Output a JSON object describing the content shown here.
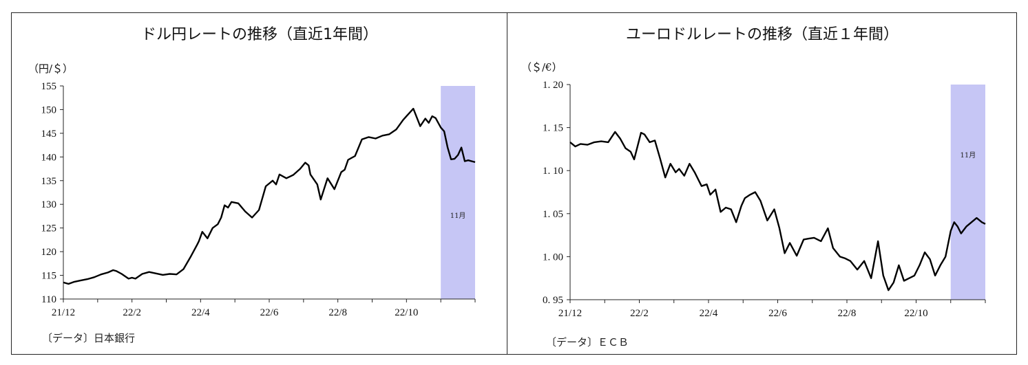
{
  "chart_data": [
    {
      "type": "line",
      "title": "ドル円レートの推移（直近1年間）",
      "unit_label": "（円/＄）",
      "source": "〔データ〕日本銀行",
      "x_tick_labels": [
        "21/12",
        "22/2",
        "22/4",
        "22/6",
        "22/8",
        "22/10"
      ],
      "y_ticks": [
        110,
        115,
        120,
        125,
        130,
        135,
        140,
        145,
        150,
        155
      ],
      "ylim": [
        110,
        155
      ],
      "x_range_months": [
        0,
        12
      ],
      "shaded_region": {
        "x_start": 11,
        "x_end": 12,
        "label": "11月",
        "color": "#c6c6f5"
      },
      "grid": false,
      "series": [
        {
          "color": "#000000",
          "x": [
            0,
            0.15,
            0.3,
            0.5,
            0.7,
            0.9,
            1.1,
            1.3,
            1.45,
            1.55,
            1.7,
            1.9,
            2.0,
            2.1,
            2.3,
            2.5,
            2.7,
            2.9,
            3.1,
            3.3,
            3.5,
            3.7,
            3.9,
            3.95,
            4.05,
            4.2,
            4.35,
            4.5,
            4.6,
            4.7,
            4.8,
            4.9,
            5.1,
            5.3,
            5.5,
            5.7,
            5.9,
            6.1,
            6.2,
            6.3,
            6.5,
            6.7,
            6.9,
            7.05,
            7.15,
            7.2,
            7.4,
            7.5,
            7.7,
            7.9,
            8.1,
            8.2,
            8.3,
            8.5,
            8.7,
            8.9,
            9.1,
            9.3,
            9.5,
            9.7,
            9.9,
            10.0,
            10.2,
            10.4,
            10.55,
            10.65,
            10.75,
            10.85,
            11.0,
            11.1,
            11.2,
            11.3,
            11.4,
            11.5,
            11.6,
            11.7,
            11.8,
            12.0
          ],
          "values": [
            113.5,
            113.2,
            113.6,
            113.9,
            114.2,
            114.6,
            115.2,
            115.6,
            116.1,
            115.9,
            115.3,
            114.3,
            114.5,
            114.3,
            115.3,
            115.7,
            115.4,
            115.1,
            115.3,
            115.2,
            116.3,
            118.8,
            121.5,
            122.2,
            124.2,
            122.8,
            125.0,
            125.8,
            127.2,
            129.8,
            129.3,
            130.5,
            130.2,
            128.5,
            127.2,
            128.8,
            133.8,
            135.0,
            134.2,
            136.3,
            135.5,
            136.2,
            137.5,
            138.8,
            138.2,
            136.3,
            134.2,
            131.0,
            135.5,
            133.2,
            136.8,
            137.3,
            139.4,
            140.2,
            143.7,
            144.2,
            143.9,
            144.5,
            144.8,
            145.8,
            147.8,
            148.6,
            150.2,
            146.5,
            148.1,
            147.2,
            148.6,
            148.2,
            146.2,
            145.4,
            142.0,
            139.5,
            139.6,
            140.4,
            142.0,
            139.1,
            139.3,
            138.9
          ]
        }
      ]
    },
    {
      "type": "line",
      "title": "ユーロドルレートの推移（直近１年間）",
      "unit_label": "（＄/€）",
      "source": "〔データ〕ＥＣＢ",
      "x_tick_labels": [
        "21/12",
        "22/2",
        "22/4",
        "22/6",
        "22/8",
        "22/10"
      ],
      "y_ticks": [
        "0.95",
        "1.00",
        "1.05",
        "1.10",
        "1.15",
        "1.20"
      ],
      "y_tick_display": [
        "0. 95",
        "1. 00",
        "1. 05",
        "1. 10",
        "1. 15",
        "1. 20"
      ],
      "ylim": [
        0.95,
        1.2
      ],
      "x_range_months": [
        0,
        12
      ],
      "shaded_region": {
        "x_start": 11,
        "x_end": 12,
        "label": "11月",
        "color": "#c6c6f5"
      },
      "grid": false,
      "series": [
        {
          "color": "#000000",
          "x": [
            0,
            0.15,
            0.3,
            0.5,
            0.7,
            0.9,
            1.1,
            1.3,
            1.45,
            1.6,
            1.75,
            1.85,
            2.05,
            2.15,
            2.3,
            2.45,
            2.6,
            2.75,
            2.9,
            3.05,
            3.15,
            3.3,
            3.45,
            3.6,
            3.8,
            3.95,
            4.05,
            4.2,
            4.35,
            4.5,
            4.65,
            4.8,
            4.95,
            5.05,
            5.2,
            5.35,
            5.5,
            5.7,
            5.9,
            6.05,
            6.2,
            6.35,
            6.55,
            6.75,
            6.9,
            7.05,
            7.25,
            7.45,
            7.6,
            7.8,
            7.95,
            8.1,
            8.3,
            8.5,
            8.7,
            8.9,
            9.05,
            9.2,
            9.35,
            9.5,
            9.65,
            9.8,
            9.95,
            10.1,
            10.25,
            10.4,
            10.55,
            10.7,
            10.85,
            11.0,
            11.1,
            11.2,
            11.3,
            11.45,
            11.6,
            11.75,
            11.9,
            12.0
          ],
          "values": [
            1.133,
            1.128,
            1.131,
            1.13,
            1.133,
            1.134,
            1.133,
            1.145,
            1.137,
            1.126,
            1.122,
            1.113,
            1.144,
            1.142,
            1.133,
            1.135,
            1.114,
            1.092,
            1.108,
            1.098,
            1.102,
            1.094,
            1.108,
            1.098,
            1.082,
            1.084,
            1.072,
            1.078,
            1.052,
            1.057,
            1.055,
            1.04,
            1.059,
            1.068,
            1.072,
            1.075,
            1.065,
            1.042,
            1.055,
            1.033,
            1.004,
            1.016,
            1.001,
            1.02,
            1.021,
            1.022,
            1.018,
            1.033,
            1.01,
            1.0,
            0.998,
            0.995,
            0.985,
            0.995,
            0.975,
            1.018,
            0.978,
            0.961,
            0.97,
            0.99,
            0.972,
            0.975,
            0.978,
            0.99,
            1.005,
            0.997,
            0.978,
            0.99,
            1.0,
            1.03,
            1.04,
            1.035,
            1.027,
            1.035,
            1.04,
            1.045,
            1.04,
            1.038
          ]
        }
      ]
    }
  ]
}
